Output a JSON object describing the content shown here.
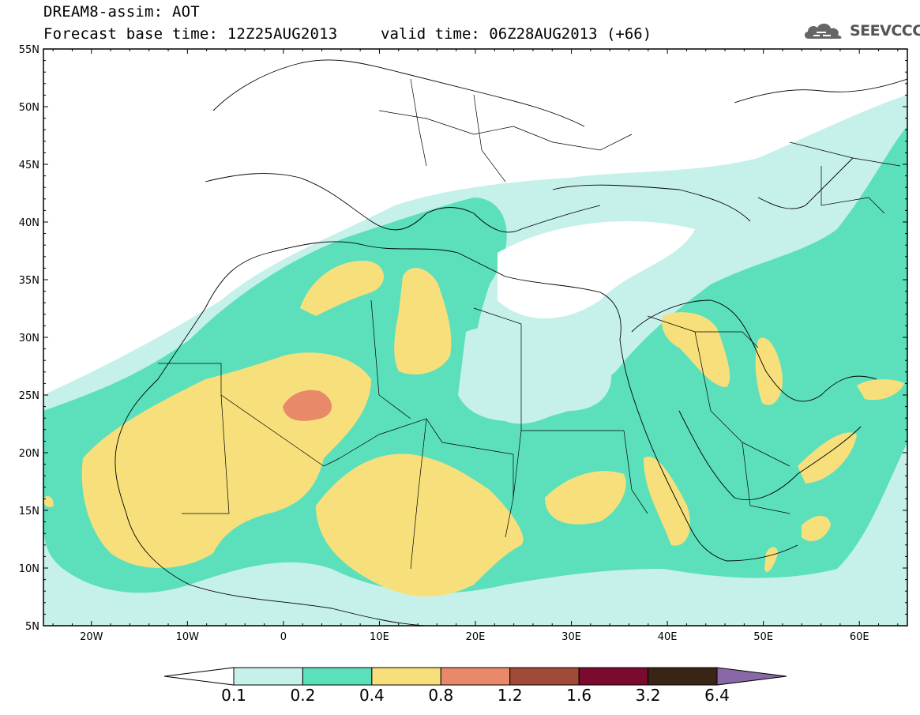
{
  "header": {
    "title_line1": "DREAM8-assim: AOT",
    "title_line2": "Forecast base time: 12Z25AUG2013",
    "valid_time": "valid time: 06Z28AUG2013 (+66)",
    "logo_text": "SEEVCCC"
  },
  "axes": {
    "lat_labels": [
      "55N",
      "50N",
      "45N",
      "40N",
      "35N",
      "30N",
      "25N",
      "20N",
      "15N",
      "10N",
      "5N"
    ],
    "lon_labels": [
      "20W",
      "10W",
      "0",
      "10E",
      "20E",
      "30E",
      "40E",
      "50E",
      "60E"
    ]
  },
  "colorbar": {
    "labels": [
      "0.1",
      "0.2",
      "0.4",
      "0.8",
      "1.2",
      "1.6",
      "3.2",
      "6.4"
    ],
    "colors": [
      "#ffffff",
      "#c6f0ea",
      "#5ce0bc",
      "#f7e07c",
      "#e8896a",
      "#a04a3a",
      "#7a0a2e",
      "#3a2416",
      "#8a68a8"
    ]
  },
  "legend": {
    "aot_levels": [
      0.1,
      0.2,
      0.4,
      0.8,
      1.2,
      1.6,
      3.2,
      6.4
    ]
  }
}
